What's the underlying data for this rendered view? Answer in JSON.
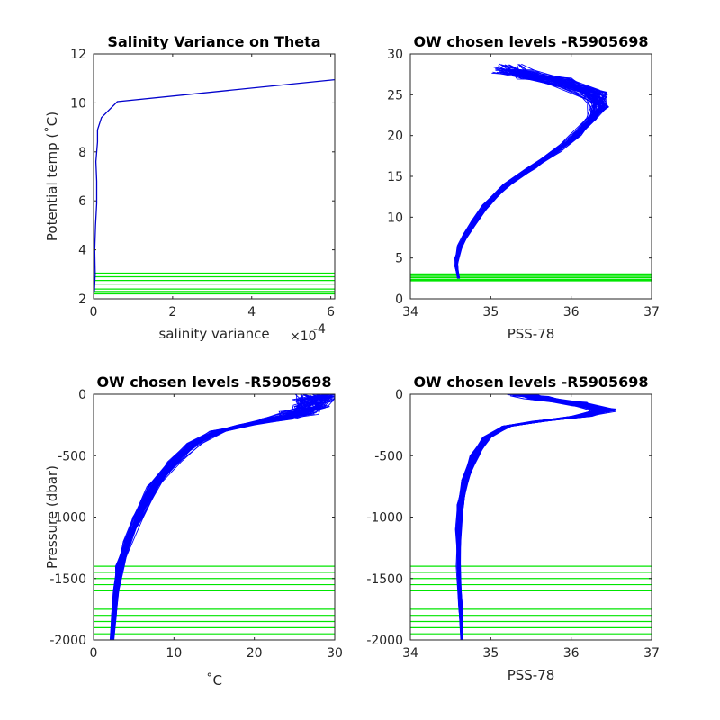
{
  "chart_data": [
    {
      "type": "line",
      "title": "Salinity Variance on Theta",
      "xlabel": "salinity variance",
      "x_exponent_label": "×10",
      "x_exponent_power": "-4",
      "ylabel": "Potential temp (˚C)",
      "xlim": [
        0,
        6.1
      ],
      "ylim": [
        2,
        12
      ],
      "xticks": [
        0,
        2,
        4,
        6
      ],
      "yticks": [
        2,
        4,
        6,
        8,
        10,
        12
      ],
      "series": [
        {
          "color": "#0000cc",
          "x": [
            0.02,
            0.04,
            0.03,
            0.05,
            0.08,
            0.08,
            0.06,
            0.1,
            0.1,
            0.2,
            0.6,
            6.1
          ],
          "y": [
            2.3,
            3.0,
            4.0,
            5.0,
            5.9,
            6.8,
            7.6,
            8.4,
            8.9,
            9.4,
            10.05,
            10.95
          ]
        }
      ],
      "hlines": {
        "color": "#00e600",
        "values": [
          2.2,
          2.3,
          2.4,
          2.6,
          2.75,
          2.9,
          3.05
        ]
      }
    },
    {
      "type": "line",
      "title": "OW chosen levels -R5905698",
      "xlabel": "PSS-78",
      "ylabel": "",
      "xlim": [
        34,
        37
      ],
      "ylim": [
        0,
        30
      ],
      "xticks": [
        34,
        35,
        36,
        37
      ],
      "yticks": [
        0,
        5,
        10,
        15,
        20,
        25,
        30
      ],
      "profiles": {
        "color": "#0000ff",
        "count": 60,
        "x": [
          34.6,
          34.57,
          34.58,
          34.62,
          34.7,
          34.8,
          34.95,
          35.2,
          35.5,
          35.8,
          36.05,
          36.25,
          36.35,
          36.3,
          35.9,
          35.4,
          35.2
        ],
        "y": [
          2.5,
          4.0,
          5.0,
          6.5,
          8.0,
          9.5,
          11.5,
          14.0,
          16.0,
          18.0,
          20.0,
          22.0,
          23.5,
          25.0,
          26.5,
          27.5,
          28.2
        ]
      },
      "hlines": {
        "color": "#00e600",
        "values": [
          2.2,
          2.3,
          2.4,
          2.6,
          2.75,
          2.9,
          3.05
        ]
      }
    },
    {
      "type": "line",
      "title": "OW chosen levels -R5905698",
      "xlabel": "˚C",
      "ylabel": "Pressure (dbar)",
      "xlim": [
        0,
        30
      ],
      "ylim": [
        -2000,
        0
      ],
      "xticks": [
        0,
        10,
        20,
        30
      ],
      "yticks": [
        -2000,
        -1500,
        -1000,
        -500,
        0
      ],
      "profiles": {
        "color": "#0000ff",
        "count": 60,
        "x": [
          2.3,
          2.5,
          2.8,
          3.3,
          4.2,
          5.5,
          7.5,
          10.0,
          12.5,
          15.5,
          19.0,
          23.0,
          25.5,
          27.0,
          27.5,
          27.8
        ],
        "y": [
          -2000,
          -1800,
          -1600,
          -1400,
          -1200,
          -1000,
          -750,
          -550,
          -400,
          -300,
          -250,
          -200,
          -150,
          -100,
          -50,
          -5
        ]
      },
      "hlines": {
        "color": "#00e600",
        "values": [
          -1400,
          -1450,
          -1500,
          -1550,
          -1600,
          -1750,
          -1800,
          -1850,
          -1900,
          -1950
        ]
      }
    },
    {
      "type": "line",
      "title": "OW chosen levels -R5905698",
      "xlabel": "PSS-78",
      "ylabel": "",
      "xlim": [
        34,
        37
      ],
      "ylim": [
        -2000,
        0
      ],
      "xticks": [
        34,
        35,
        36,
        37
      ],
      "yticks": [
        -2000,
        -1500,
        -1000,
        -500,
        0
      ],
      "profiles": {
        "color": "#0000ff",
        "count": 60,
        "x": [
          34.64,
          34.62,
          34.6,
          34.6,
          34.62,
          34.68,
          34.8,
          34.95,
          35.2,
          35.6,
          36.1,
          36.4,
          36.1,
          35.6,
          35.4
        ],
        "y": [
          -2000,
          -1700,
          -1400,
          -1100,
          -900,
          -700,
          -500,
          -350,
          -260,
          -220,
          -180,
          -130,
          -80,
          -30,
          -5
        ]
      },
      "hlines": {
        "color": "#00e600",
        "values": [
          -1400,
          -1450,
          -1500,
          -1550,
          -1600,
          -1750,
          -1800,
          -1850,
          -1900,
          -1950
        ]
      }
    }
  ]
}
